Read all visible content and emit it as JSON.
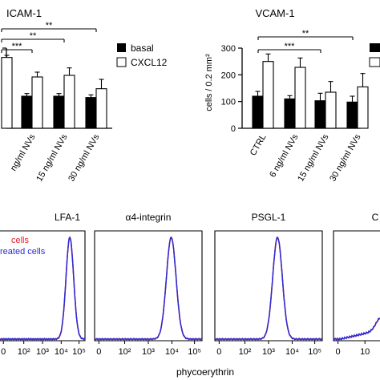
{
  "chart_data": [
    {
      "type": "bar",
      "title": "ICAM-1",
      "categories": [
        "",
        "ng/ml NVs",
        "15 ng/ml NVs",
        "30 ng/ml NVs"
      ],
      "series": [
        {
          "name": "basal",
          "values": [
            null,
            120,
            120,
            115
          ],
          "errors": [
            null,
            10,
            10,
            10
          ]
        },
        {
          "name": "CXCL12",
          "values": [
            265,
            192,
            198,
            148
          ],
          "errors": [
            8,
            18,
            28,
            35
          ]
        }
      ],
      "significance": [
        {
          "from": 0,
          "to": 1,
          "label": "***"
        },
        {
          "from": 0,
          "to": 2,
          "label": "**"
        },
        {
          "from": 0,
          "to": 3,
          "label": "**"
        }
      ],
      "legend": "right"
    },
    {
      "type": "bar",
      "title": "VCAM-1",
      "ylabel": "cells / 0.2 mm²",
      "ylim": [
        0,
        300
      ],
      "yticks": [
        "0",
        "100",
        "200",
        "300"
      ],
      "categories": [
        "CTRL",
        "6 ng/ml NVs",
        "15 ng/ml NVs",
        "30 ng/ml NVs"
      ],
      "series": [
        {
          "name": "",
          "values": [
            120,
            110,
            103,
            98
          ],
          "errors": [
            18,
            12,
            28,
            22
          ]
        },
        {
          "name": "",
          "values": [
            250,
            228,
            135,
            155
          ],
          "errors": [
            28,
            35,
            40,
            50
          ]
        }
      ],
      "significance": [
        {
          "from": 0,
          "to": 2,
          "label": "***"
        },
        {
          "from": 0,
          "to": 3,
          "label": "**"
        }
      ],
      "legend": "right"
    },
    {
      "type": "line",
      "title": "LFA-1",
      "x_axis": "log",
      "xticks": [
        "0",
        "10²",
        "10³",
        "10⁴",
        "10⁵"
      ],
      "peak_log10": 4.5,
      "series_legend": [
        "cells",
        "reated cells"
      ]
    },
    {
      "type": "line",
      "title": "α4-integrin",
      "x_axis": "log",
      "xticks": [
        "0",
        "10²",
        "10³",
        "10⁴",
        "10⁵"
      ],
      "peak_log10": 4.0
    },
    {
      "type": "line",
      "title": "PSGL-1",
      "x_axis": "log",
      "xticks": [
        "0",
        "10²",
        "10³",
        "10⁴",
        "10⁵"
      ],
      "peak_log10": 3.4
    },
    {
      "type": "line",
      "title": "C",
      "x_axis": "log",
      "xticks": [
        "0",
        "10"
      ]
    }
  ],
  "shared_xlabel": "phycoerythrin",
  "colors": {
    "control": "#e8202a",
    "treated": "#2b2bd4",
    "bar_dark": "#000000",
    "bar_light": "#ffffff"
  }
}
